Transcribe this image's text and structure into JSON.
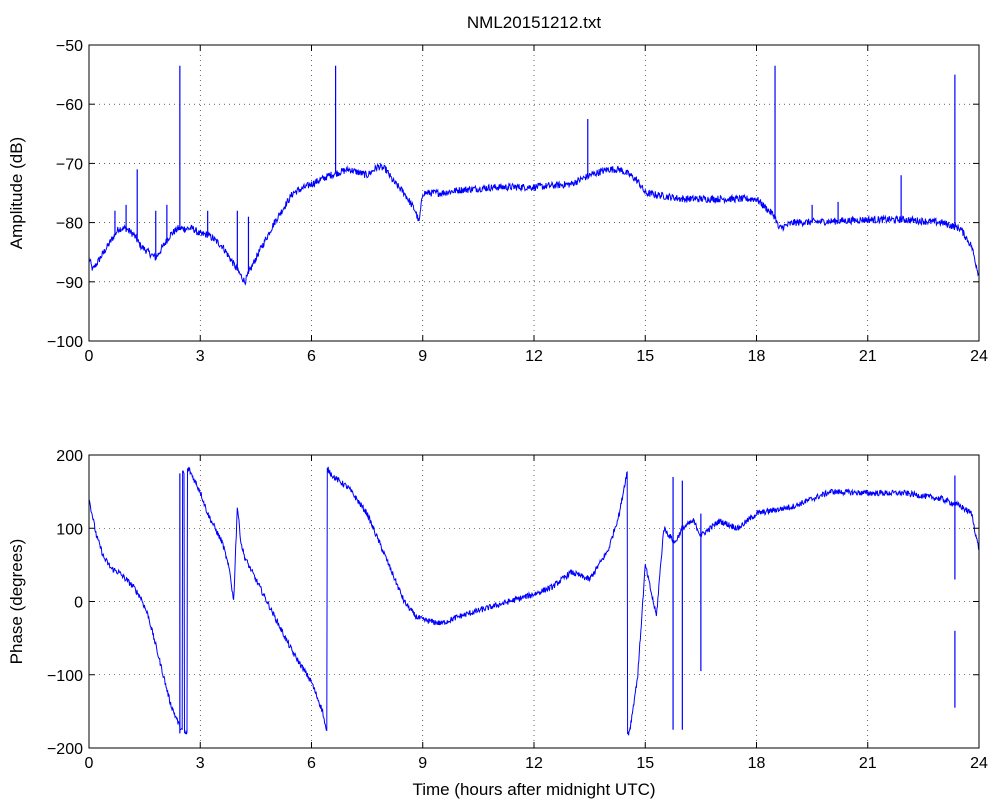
{
  "figure_title": "NML20151212.txt",
  "colors": {
    "series": "#0000ff",
    "axes": "#000000",
    "background": "#ffffff"
  },
  "chart_data": [
    {
      "type": "line",
      "title": "NML20151212.txt",
      "xlabel": "",
      "ylabel": "Amplitude (dB)",
      "xlim": [
        0,
        24
      ],
      "ylim": [
        -100,
        -50
      ],
      "xticks": [
        0,
        3,
        6,
        9,
        12,
        15,
        18,
        21,
        24
      ],
      "yticks": [
        -100,
        -90,
        -80,
        -70,
        -60,
        -50
      ],
      "grid": true,
      "series": [
        {
          "color": "#0000ff",
          "x": [
            0,
            0.1,
            0.2,
            0.4,
            0.6,
            0.8,
            1.0,
            1.2,
            1.4,
            1.6,
            1.8,
            2.0,
            2.2,
            2.4,
            2.6,
            2.8,
            3.0,
            3.2,
            3.4,
            3.6,
            3.8,
            4.0,
            4.2,
            4.5,
            5.0,
            5.5,
            6.0,
            6.5,
            7.0,
            7.5,
            7.8,
            8.0,
            8.2,
            8.5,
            8.8,
            8.9,
            9.0,
            9.5,
            10,
            11,
            12,
            13,
            13.5,
            14,
            14.3,
            14.6,
            14.8,
            15,
            16,
            17,
            18,
            18.5,
            18.6,
            19,
            20,
            21,
            22,
            23,
            23.5,
            23.8,
            24
          ],
          "values": [
            -86,
            -88,
            -87,
            -85,
            -83,
            -81,
            -81,
            -82,
            -84,
            -85,
            -86,
            -84,
            -82,
            -81,
            -81,
            -81,
            -82,
            -82,
            -83,
            -84,
            -86,
            -88,
            -90,
            -86,
            -80,
            -75,
            -73.5,
            -72,
            -71,
            -72,
            -70.5,
            -71,
            -73,
            -75,
            -78,
            -80,
            -75,
            -75,
            -74.5,
            -74,
            -74,
            -73.5,
            -72,
            -71,
            -71,
            -72,
            -73,
            -75,
            -76,
            -76,
            -76,
            -79,
            -81,
            -80,
            -79.8,
            -79.5,
            -79.5,
            -80,
            -81,
            -84,
            -89
          ],
          "spikes": [
            {
              "x": 0.7,
              "y": -78
            },
            {
              "x": 1.0,
              "y": -77
            },
            {
              "x": 1.3,
              "y": -71
            },
            {
              "x": 1.8,
              "y": -78
            },
            {
              "x": 2.1,
              "y": -77
            },
            {
              "x": 2.45,
              "y": -53.5
            },
            {
              "x": 3.2,
              "y": -78
            },
            {
              "x": 4.0,
              "y": -78
            },
            {
              "x": 4.3,
              "y": -79
            },
            {
              "x": 6.65,
              "y": -53.5
            },
            {
              "x": 13.45,
              "y": -62.5
            },
            {
              "x": 18.5,
              "y": -53.5
            },
            {
              "x": 19.5,
              "y": -77
            },
            {
              "x": 20.2,
              "y": -76.5
            },
            {
              "x": 21.9,
              "y": -72
            },
            {
              "x": 23.35,
              "y": -55
            }
          ]
        }
      ]
    },
    {
      "type": "line",
      "title": "",
      "xlabel": "Time (hours after midnight UTC)",
      "ylabel": "Phase (degrees)",
      "xlim": [
        0,
        24
      ],
      "ylim": [
        -200,
        200
      ],
      "xticks": [
        0,
        3,
        6,
        9,
        12,
        15,
        18,
        21,
        24
      ],
      "yticks": [
        -200,
        -100,
        0,
        100,
        200
      ],
      "grid": true,
      "series": [
        {
          "color": "#0000ff",
          "x": [
            0,
            0.2,
            0.4,
            0.6,
            0.8,
            1.0,
            1.2,
            1.4,
            1.6,
            1.8,
            2.0,
            2.2,
            2.4,
            2.5,
            2.55,
            2.6,
            2.7,
            2.8,
            3.0,
            3.2,
            3.4,
            3.6,
            3.8,
            3.9,
            4.0,
            4.1,
            4.2,
            4.5,
            5.0,
            5.5,
            6.0,
            6.3,
            6.4,
            6.45,
            6.6,
            7.0,
            7.5,
            8.0,
            8.5,
            8.8,
            9.0,
            9.5,
            10.0,
            11.0,
            12.0,
            12.5,
            13.0,
            13.5,
            14.0,
            14.3,
            14.5,
            14.55,
            14.6,
            14.8,
            15.0,
            15.3,
            15.5,
            15.8,
            16.0,
            16.3,
            16.5,
            17.0,
            17.5,
            18.0,
            18.5,
            19.0,
            19.5,
            20.0,
            21.0,
            22.0,
            23.0,
            23.5,
            23.8,
            24.0
          ],
          "values": [
            140,
            90,
            60,
            45,
            40,
            30,
            20,
            5,
            -20,
            -60,
            -100,
            -140,
            -165,
            -175,
            175,
            -180,
            180,
            170,
            150,
            120,
            100,
            80,
            40,
            0,
            130,
            80,
            60,
            30,
            -20,
            -70,
            -110,
            -150,
            -178,
            180,
            170,
            155,
            120,
            60,
            0,
            -20,
            -25,
            -30,
            -20,
            -5,
            10,
            20,
            40,
            30,
            70,
            120,
            175,
            -180,
            -170,
            -100,
            50,
            -20,
            100,
            80,
            100,
            110,
            90,
            110,
            100,
            120,
            125,
            130,
            140,
            150,
            148,
            148,
            140,
            130,
            120,
            70
          ],
          "spikes": [
            {
              "x": 2.45,
              "y1": -180,
              "y2": 175
            },
            {
              "x": 15.75,
              "y1": -175,
              "y2": 170
            },
            {
              "x": 16.0,
              "y1": -175,
              "y2": 165
            },
            {
              "x": 16.5,
              "y1": -95,
              "y2": 120
            },
            {
              "x": 23.35,
              "y1": 30,
              "y2": 172
            },
            {
              "x": 23.35,
              "y1": -145,
              "y2": -40
            }
          ]
        }
      ]
    }
  ]
}
